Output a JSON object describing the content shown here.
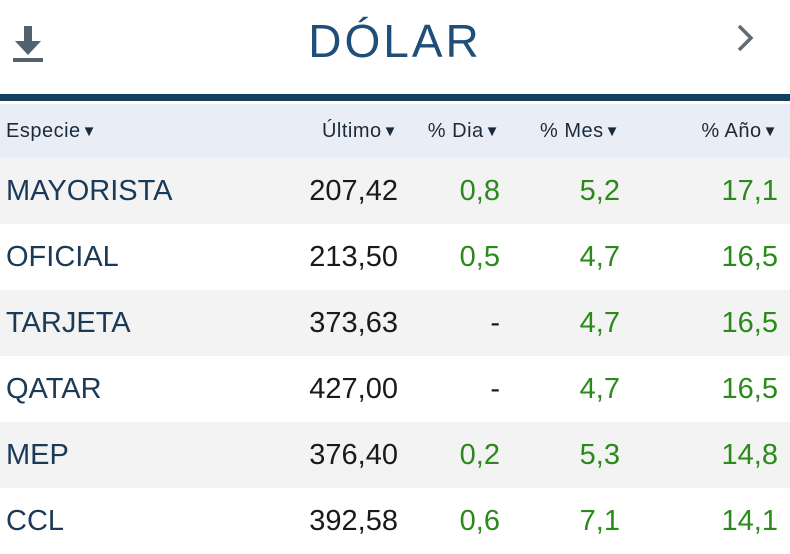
{
  "header": {
    "title": "DÓLAR"
  },
  "table": {
    "columns": [
      {
        "label": "Especie",
        "arrow": "▼"
      },
      {
        "label": "Último",
        "arrow": "▼"
      },
      {
        "label": "% Dia",
        "arrow": "▼"
      },
      {
        "label": "% Mes",
        "arrow": "▼"
      },
      {
        "label": "% Año",
        "arrow": "▼"
      }
    ],
    "rows": [
      {
        "name": "MAYORISTA",
        "last": "207,42",
        "day": "0,8",
        "month": "5,2",
        "year": "17,1"
      },
      {
        "name": "OFICIAL",
        "last": "213,50",
        "day": "0,5",
        "month": "4,7",
        "year": "16,5"
      },
      {
        "name": "TARJETA",
        "last": "373,63",
        "day": "-",
        "month": "4,7",
        "year": "16,5"
      },
      {
        "name": "QATAR",
        "last": "427,00",
        "day": "-",
        "month": "4,7",
        "year": "16,5"
      },
      {
        "name": "MEP",
        "last": "376,40",
        "day": "0,2",
        "month": "5,3",
        "year": "14,8"
      },
      {
        "name": "CCL",
        "last": "392,58",
        "day": "0,6",
        "month": "7,1",
        "year": "14,1"
      }
    ]
  },
  "colors": {
    "title": "#1f4e79",
    "rule": "#153e5f",
    "positive": "#2a8a1a",
    "header_bg": "#e9eef6",
    "alt_row_bg": "#f3f3f3"
  },
  "icons": {
    "download": "download-icon",
    "next": "chevron-right-icon"
  }
}
